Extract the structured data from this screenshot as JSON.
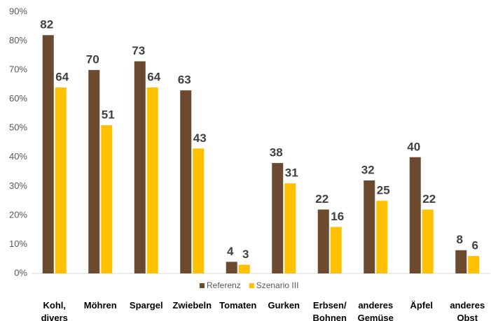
{
  "chart_data": {
    "type": "bar",
    "categories": [
      "Kohl,\ndivers",
      "Möhren",
      "Spargel",
      "Zwiebeln",
      "Tomaten",
      "Gurken",
      "Erbsen/\nBohnen",
      "anderes\nGemüse",
      "Äpfel",
      "anderes\nObst"
    ],
    "series": [
      {
        "name": "Referenz",
        "color": "#6b4a2f",
        "values": [
          82,
          70,
          73,
          63,
          4,
          38,
          22,
          32,
          40,
          8
        ]
      },
      {
        "name": "Szenario III",
        "color": "#ffc000",
        "values": [
          64,
          51,
          64,
          43,
          3,
          31,
          16,
          25,
          22,
          6
        ]
      }
    ],
    "ylim": [
      0,
      90
    ],
    "yticks": [
      {
        "value": 0,
        "label": "0%"
      },
      {
        "value": 10,
        "label": "10%"
      },
      {
        "value": 20,
        "label": "20%"
      },
      {
        "value": 30,
        "label": "30%"
      },
      {
        "value": 40,
        "label": "40%"
      },
      {
        "value": 50,
        "label": "50%"
      },
      {
        "value": 60,
        "label": "60%"
      },
      {
        "value": 70,
        "label": "70%"
      },
      {
        "value": 80,
        "label": "80%"
      },
      {
        "value": 90,
        "label": "90%"
      }
    ],
    "grid": false,
    "legend": "bottom"
  }
}
